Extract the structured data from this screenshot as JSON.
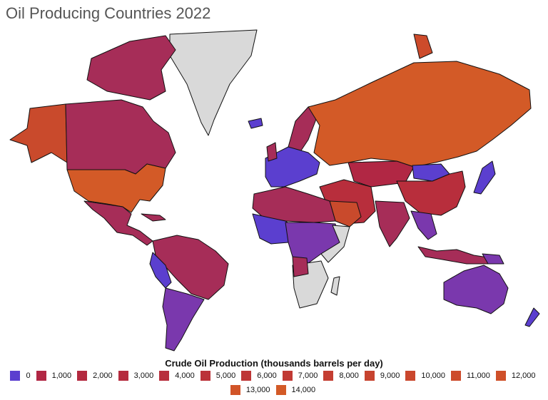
{
  "title": "Oil Producing Countries 2022",
  "legend": {
    "title": "Crude Oil Production (thousands barrels per day)",
    "items": [
      {
        "label": "0",
        "color": "#5b3fcf"
      },
      {
        "label": "1,000",
        "color": "#b12744"
      },
      {
        "label": "2,000",
        "color": "#b3293f"
      },
      {
        "label": "3,000",
        "color": "#b52b3e"
      },
      {
        "label": "4,000",
        "color": "#b82e3c"
      },
      {
        "label": "5,000",
        "color": "#bb3239"
      },
      {
        "label": "6,000",
        "color": "#be3636"
      },
      {
        "label": "7,000",
        "color": "#c13a34"
      },
      {
        "label": "8,000",
        "color": "#c43e32"
      },
      {
        "label": "9,000",
        "color": "#c7432f"
      },
      {
        "label": "10,000",
        "color": "#ca472d"
      },
      {
        "label": "11,000",
        "color": "#cd4b2b"
      },
      {
        "label": "12,000",
        "color": "#cf5029"
      },
      {
        "label": "13,000",
        "color": "#d15428"
      },
      {
        "label": "14,000",
        "color": "#d35a27"
      }
    ]
  },
  "colors": {
    "no_data": "#d9d9d9",
    "low": "#5b3fcf",
    "mid": "#a62d58",
    "high": "#c94a2c",
    "top": "#d35a27"
  }
}
